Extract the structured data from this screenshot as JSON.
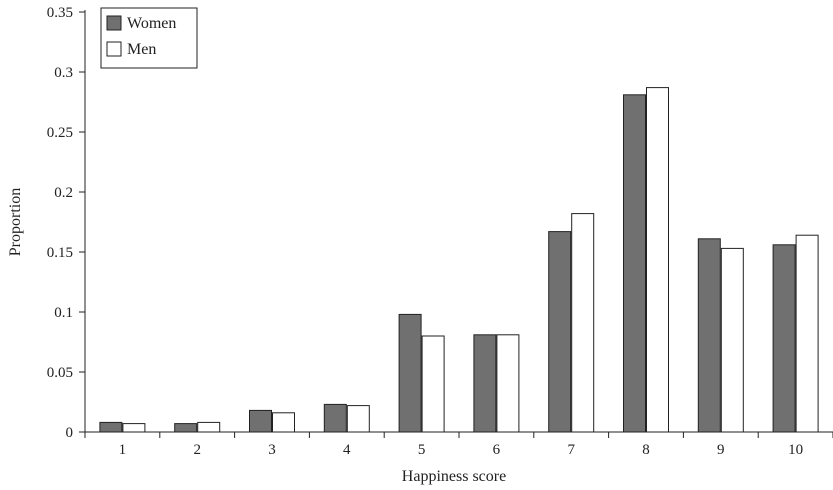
{
  "chart_data": {
    "type": "bar",
    "title": "",
    "xlabel": "Happiness score",
    "ylabel": "Proportion",
    "categories": [
      "1",
      "2",
      "3",
      "4",
      "5",
      "6",
      "7",
      "8",
      "9",
      "10"
    ],
    "series": [
      {
        "name": "Women",
        "color": "#707070",
        "values": [
          0.008,
          0.007,
          0.018,
          0.023,
          0.098,
          0.081,
          0.167,
          0.281,
          0.161,
          0.156
        ]
      },
      {
        "name": "Men",
        "color": "#ffffff",
        "values": [
          0.007,
          0.008,
          0.016,
          0.022,
          0.08,
          0.081,
          0.182,
          0.287,
          0.153,
          0.164
        ]
      }
    ],
    "ylim": [
      0,
      0.35
    ],
    "yticks": [
      {
        "value": 0,
        "label": "0"
      },
      {
        "value": 0.05,
        "label": "0.05"
      },
      {
        "value": 0.1,
        "label": "0.1"
      },
      {
        "value": 0.15,
        "label": "0.15"
      },
      {
        "value": 0.2,
        "label": "0.2"
      },
      {
        "value": 0.25,
        "label": "0.25"
      },
      {
        "value": 0.3,
        "label": "0.3"
      },
      {
        "value": 0.35,
        "label": "0.35"
      }
    ],
    "grid": false,
    "legend_position": "top-left"
  }
}
